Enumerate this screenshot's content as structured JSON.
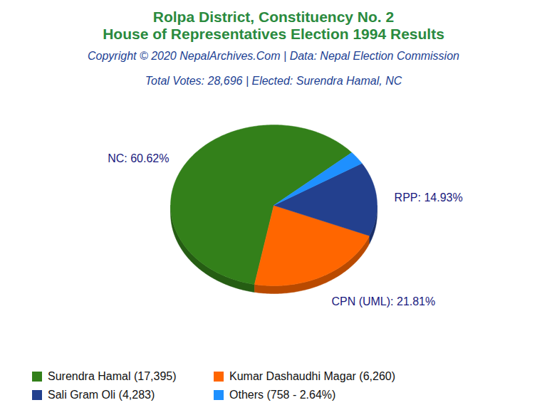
{
  "chart_data": {
    "type": "pie",
    "title": [
      "Rolpa District, Constituency No. 2",
      "House of Representatives Election 1994 Results"
    ],
    "subtitle": [
      "Copyright © 2020 NepalArchives.Com | Data: Nepal Election Commission",
      "Total Votes: 28,696 | Elected: Surendra Hamal, NC"
    ],
    "categories": [
      "Surendra Hamal (17,395)",
      "Kumar Dashaudhi Magar (6,260)",
      "Sali Gram Oli (4,283)",
      "Others (758 - 2.64%)"
    ],
    "values": [
      60.62,
      21.81,
      14.93,
      2.64
    ],
    "value_labels": [
      "NC: 60.62%",
      "CPN (UML): 21.81%",
      "RPP: 14.93%",
      null
    ],
    "data_labels": true,
    "colors": [
      "#33801a",
      "#ff6600",
      "#23408e",
      "#1e90ff"
    ],
    "legend": "bottom"
  }
}
